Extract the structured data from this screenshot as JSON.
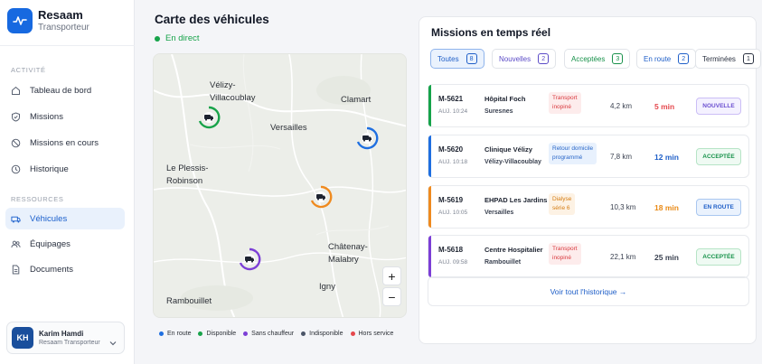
{
  "brand": {
    "name": "Resaam",
    "subtitle": "Transporteur"
  },
  "sidebar": {
    "section_activity": "ACTIVITÉ",
    "section_resources": "RESSOURCES",
    "items": [
      {
        "label": "Tableau de bord",
        "icon": "home-icon"
      },
      {
        "label": "Missions",
        "icon": "check-shield-icon"
      },
      {
        "label": "Missions en cours",
        "icon": "clock-icon"
      },
      {
        "label": "Historique",
        "icon": "history-icon"
      },
      {
        "label": "Véhicules",
        "icon": "ambulance-icon",
        "active": true
      },
      {
        "label": "Équipages",
        "icon": "users-icon"
      },
      {
        "label": "Documents",
        "icon": "document-icon"
      }
    ],
    "user": {
      "initials": "KH",
      "name": "Karim Hamdi",
      "org": "Resaam Transporteur"
    }
  },
  "map_panel": {
    "title": "Carte des véhicules",
    "live": "En direct",
    "cities": [
      "Vélizy-\nVillacoublay",
      "Clamart",
      "Versailles",
      "Le Plessis-\nRobinson",
      "Châtenay-\nMalabry",
      "Igny",
      "Rambouillet"
    ],
    "zoom_in": "+",
    "zoom_out": "−",
    "legend": [
      {
        "label": "En route",
        "color": "#1f6fe0"
      },
      {
        "label": "Disponible",
        "color": "#18a34a"
      },
      {
        "label": "Sans chauffeur",
        "color": "#7c3fd6"
      },
      {
        "label": "Indisponible",
        "color": "#4b5568"
      },
      {
        "label": "Hors service",
        "color": "#e5484d"
      }
    ]
  },
  "missions": {
    "title": "Missions en temps réel",
    "tabs": [
      {
        "label": "Toutes",
        "count": "8"
      },
      {
        "label": "Nouvelles",
        "count": "2"
      },
      {
        "label": "Acceptées",
        "count": "3"
      },
      {
        "label": "En route",
        "count": "2"
      },
      {
        "label": "Terminées",
        "count": "1"
      }
    ],
    "rows": [
      {
        "id": "M-5621",
        "date": "AUJ. 10:24",
        "place": "Hôpital Foch",
        "city": "Suresnes",
        "tag": "Transport\ninopiné",
        "distance": "4,2 km",
        "eta": "5 min",
        "status": "NOUVELLE",
        "bar": "#16a34a",
        "eta_color": "#e5484d",
        "tag_bg": "#fdecec",
        "tag_fg": "#d93a3f",
        "status_fg": "#6b4fd0",
        "status_bg": "#f4f1ff",
        "status_border": "#cbbef6"
      },
      {
        "id": "M-5620",
        "date": "AUJ. 10:18",
        "place": "Clinique Vélizy",
        "city": "Vélizy-Villacoublay",
        "tag": "Retour domicile\nprogrammé",
        "distance": "7,8 km",
        "eta": "12 min",
        "status": "ACCEPTÉE",
        "bar": "#1f6fe0",
        "eta_color": "#1f5fc8",
        "tag_bg": "#e8f1fd",
        "tag_fg": "#2866c8",
        "status_fg": "#16924a",
        "status_bg": "#effaf3",
        "status_border": "#b6e4c6"
      },
      {
        "id": "M-5619",
        "date": "AUJ. 10:05",
        "place": "EHPAD Les Jardins",
        "city": "Versailles",
        "tag": "Dialyse\nsérie 6",
        "distance": "10,3 km",
        "eta": "18 min",
        "status": "EN ROUTE",
        "bar": "#ef8a1f",
        "eta_color": "#e98a16",
        "tag_bg": "#fdf2e4",
        "tag_fg": "#d57c12",
        "status_fg": "#1f5fc8",
        "status_bg": "#eaf2fd",
        "status_border": "#a9c7f0"
      },
      {
        "id": "M-5618",
        "date": "AUJ. 09:58",
        "place": "Centre Hospitalier",
        "city": "Rambouillet",
        "tag": "Transport\ninopiné",
        "distance": "22,1 km",
        "eta": "25 min",
        "status": "ACCEPTÉE",
        "bar": "#7c3fd6",
        "eta_color": "#3a4150",
        "tag_bg": "#fdecec",
        "tag_fg": "#d93a3f",
        "status_fg": "#16924a",
        "status_bg": "#effaf3",
        "status_border": "#b6e4c6"
      }
    ],
    "history_link": "Voir tout l'historique →"
  }
}
